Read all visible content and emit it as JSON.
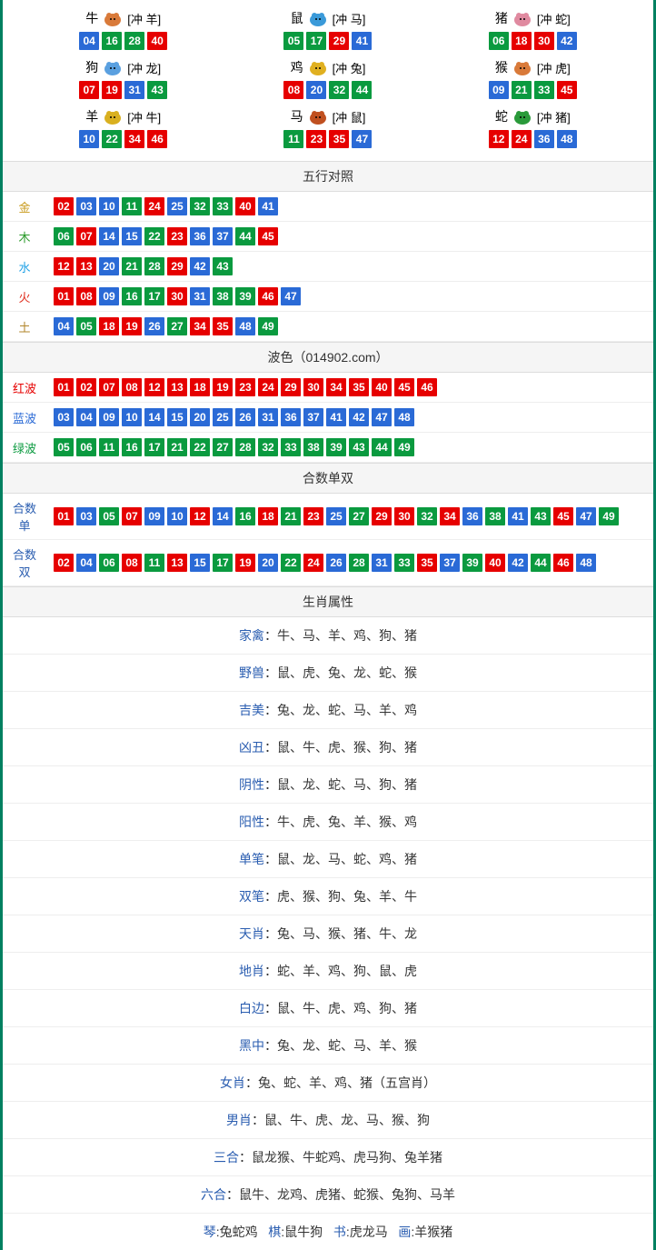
{
  "colors": {
    "red": "#e60000",
    "blue": "#2a6ad6",
    "green": "#0a9a3f",
    "gold": "#d4a017",
    "water": "#1ea0e6",
    "fire": "#e03020",
    "earth": "#b2852a",
    "wood": "#2a9a2a",
    "metal": "#c99b1c",
    "border": "#008060",
    "header_bg": "#f5f5f5",
    "hr": "#eeeeee",
    "text": "#333333",
    "key": "#2a5db0"
  },
  "zodiac_icons": {
    "牛": "#d97a3a",
    "鼠": "#3a9ad9",
    "猪": "#e08aa0",
    "狗": "#5aa0e0",
    "鸡": "#e0b020",
    "猴": "#d97a3a",
    "羊": "#d9b020",
    "马": "#c05020",
    "蛇": "#2a9a3a"
  },
  "color_for_num": {
    "01": "red",
    "02": "red",
    "07": "red",
    "08": "red",
    "12": "red",
    "13": "red",
    "18": "red",
    "19": "red",
    "23": "red",
    "24": "red",
    "29": "red",
    "30": "red",
    "34": "red",
    "35": "red",
    "40": "red",
    "45": "red",
    "46": "red",
    "03": "blue",
    "04": "blue",
    "09": "blue",
    "10": "blue",
    "14": "blue",
    "15": "blue",
    "20": "blue",
    "25": "blue",
    "26": "blue",
    "31": "blue",
    "36": "blue",
    "37": "blue",
    "41": "blue",
    "42": "blue",
    "47": "blue",
    "48": "blue",
    "05": "green",
    "06": "green",
    "11": "green",
    "16": "green",
    "17": "green",
    "21": "green",
    "22": "green",
    "27": "green",
    "28": "green",
    "32": "green",
    "33": "green",
    "38": "green",
    "39": "green",
    "43": "green",
    "44": "green",
    "49": "green"
  },
  "zodiac_grid": [
    {
      "name": "牛",
      "chong": "[冲 羊]",
      "nums": [
        "04",
        "16",
        "28",
        "40"
      ]
    },
    {
      "name": "鼠",
      "chong": "[冲 马]",
      "nums": [
        "05",
        "17",
        "29",
        "41"
      ]
    },
    {
      "name": "猪",
      "chong": "[冲 蛇]",
      "nums": [
        "06",
        "18",
        "30",
        "42"
      ]
    },
    {
      "name": "狗",
      "chong": "[冲 龙]",
      "nums": [
        "07",
        "19",
        "31",
        "43"
      ]
    },
    {
      "name": "鸡",
      "chong": "[冲 兔]",
      "nums": [
        "08",
        "20",
        "32",
        "44"
      ]
    },
    {
      "name": "猴",
      "chong": "[冲 虎]",
      "nums": [
        "09",
        "21",
        "33",
        "45"
      ]
    },
    {
      "name": "羊",
      "chong": "[冲 牛]",
      "nums": [
        "10",
        "22",
        "34",
        "46"
      ]
    },
    {
      "name": "马",
      "chong": "[冲 鼠]",
      "nums": [
        "11",
        "23",
        "35",
        "47"
      ]
    },
    {
      "name": "蛇",
      "chong": "[冲 猪]",
      "nums": [
        "12",
        "24",
        "36",
        "48"
      ]
    }
  ],
  "sections": {
    "wuxing_title": "五行对照",
    "bose_title": "波色（014902.com）",
    "heshu_title": "合数单双",
    "shengxiao_title": "生肖属性"
  },
  "wuxing": [
    {
      "label": "金",
      "color": "metal",
      "nums": [
        "02",
        "03",
        "10",
        "11",
        "24",
        "25",
        "32",
        "33",
        "40",
        "41"
      ]
    },
    {
      "label": "木",
      "color": "wood",
      "nums": [
        "06",
        "07",
        "14",
        "15",
        "22",
        "23",
        "36",
        "37",
        "44",
        "45"
      ]
    },
    {
      "label": "水",
      "color": "water",
      "nums": [
        "12",
        "13",
        "20",
        "21",
        "28",
        "29",
        "42",
        "43"
      ]
    },
    {
      "label": "火",
      "color": "fire",
      "nums": [
        "01",
        "08",
        "09",
        "16",
        "17",
        "30",
        "31",
        "38",
        "39",
        "46",
        "47"
      ]
    },
    {
      "label": "土",
      "color": "earth",
      "nums": [
        "04",
        "05",
        "18",
        "19",
        "26",
        "27",
        "34",
        "35",
        "48",
        "49"
      ]
    }
  ],
  "bose": [
    {
      "label": "红波",
      "color": "red",
      "nums": [
        "01",
        "02",
        "07",
        "08",
        "12",
        "13",
        "18",
        "19",
        "23",
        "24",
        "29",
        "30",
        "34",
        "35",
        "40",
        "45",
        "46"
      ]
    },
    {
      "label": "蓝波",
      "color": "blue",
      "nums": [
        "03",
        "04",
        "09",
        "10",
        "14",
        "15",
        "20",
        "25",
        "26",
        "31",
        "36",
        "37",
        "41",
        "42",
        "47",
        "48"
      ]
    },
    {
      "label": "绿波",
      "color": "green",
      "nums": [
        "05",
        "06",
        "11",
        "16",
        "17",
        "21",
        "22",
        "27",
        "28",
        "32",
        "33",
        "38",
        "39",
        "43",
        "44",
        "49"
      ]
    }
  ],
  "heshu": [
    {
      "label": "合数单",
      "color": "key",
      "nums": [
        "01",
        "03",
        "05",
        "07",
        "09",
        "10",
        "12",
        "14",
        "16",
        "18",
        "21",
        "23",
        "25",
        "27",
        "29",
        "30",
        "32",
        "34",
        "36",
        "38",
        "41",
        "43",
        "45",
        "47",
        "49"
      ]
    },
    {
      "label": "合数双",
      "color": "key",
      "nums": [
        "02",
        "04",
        "06",
        "08",
        "11",
        "13",
        "15",
        "17",
        "19",
        "20",
        "22",
        "24",
        "26",
        "28",
        "31",
        "33",
        "35",
        "37",
        "39",
        "40",
        "42",
        "44",
        "46",
        "48"
      ]
    }
  ],
  "attrs": [
    {
      "key": "家禽",
      "val": "：牛、马、羊、鸡、狗、猪"
    },
    {
      "key": "野兽",
      "val": "：鼠、虎、兔、龙、蛇、猴"
    },
    {
      "key": "吉美",
      "val": "：兔、龙、蛇、马、羊、鸡"
    },
    {
      "key": "凶丑",
      "val": "：鼠、牛、虎、猴、狗、猪"
    },
    {
      "key": "阴性",
      "val": "：鼠、龙、蛇、马、狗、猪"
    },
    {
      "key": "阳性",
      "val": "：牛、虎、兔、羊、猴、鸡"
    },
    {
      "key": "单笔",
      "val": "：鼠、龙、马、蛇、鸡、猪"
    },
    {
      "key": "双笔",
      "val": "：虎、猴、狗、兔、羊、牛"
    },
    {
      "key": "天肖",
      "val": "：兔、马、猴、猪、牛、龙"
    },
    {
      "key": "地肖",
      "val": "：蛇、羊、鸡、狗、鼠、虎"
    },
    {
      "key": "白边",
      "val": "：鼠、牛、虎、鸡、狗、猪"
    },
    {
      "key": "黑中",
      "val": "：兔、龙、蛇、马、羊、猴"
    },
    {
      "key": "女肖",
      "val": "：兔、蛇、羊、鸡、猪（五宫肖）"
    },
    {
      "key": "男肖",
      "val": "：鼠、牛、虎、龙、马、猴、狗"
    },
    {
      "key": "三合",
      "val": "：鼠龙猴、牛蛇鸡、虎马狗、兔羊猪"
    },
    {
      "key": "六合",
      "val": "：鼠牛、龙鸡、虎猪、蛇猴、兔狗、马羊"
    }
  ],
  "bottom_row": [
    {
      "key": "琴",
      "val": ":兔蛇鸡"
    },
    {
      "key": "棋",
      "val": ":鼠牛狗"
    },
    {
      "key": "书",
      "val": ":虎龙马"
    },
    {
      "key": "画",
      "val": ":羊猴猪"
    }
  ]
}
